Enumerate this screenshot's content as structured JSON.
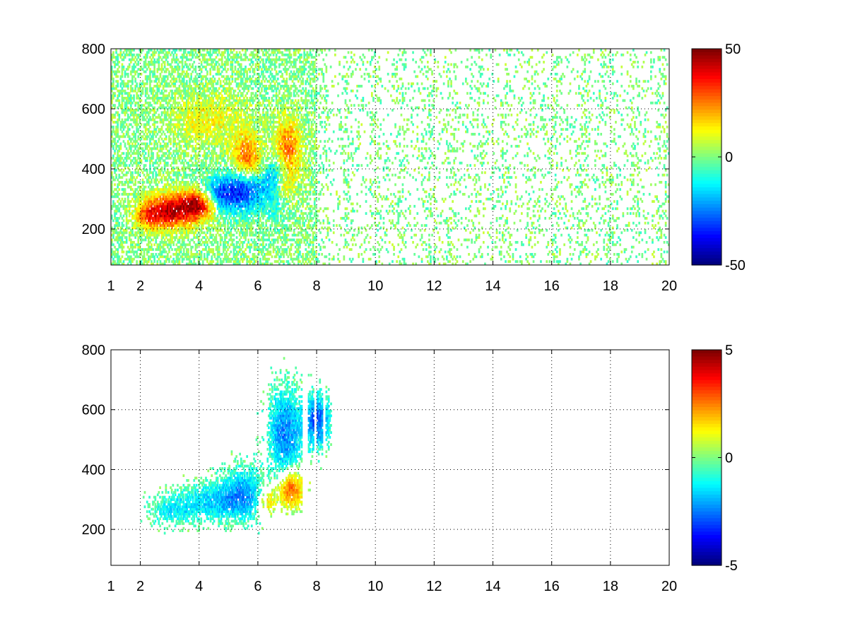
{
  "chart_data": [
    {
      "type": "heatmap",
      "title": "",
      "xlabel": "",
      "ylabel": "",
      "xlim": [
        1,
        20
      ],
      "ylim": [
        80,
        800
      ],
      "x_scale": "linear",
      "grid": true,
      "grid_style": "dotted",
      "x_ticks": [
        1,
        2,
        4,
        6,
        8,
        10,
        12,
        14,
        16,
        18,
        20
      ],
      "y_ticks": [
        200,
        400,
        600,
        800
      ],
      "x_tick_labels": [
        "1",
        "2",
        "4",
        "6",
        "8",
        "10",
        "12",
        "14",
        "16",
        "18",
        "20"
      ],
      "y_tick_labels": [
        "200",
        "400",
        "600",
        "800"
      ],
      "colormap": "jet",
      "colorbar": {
        "clim": [
          -50,
          50
        ],
        "ticks": [
          50,
          0,
          -50
        ],
        "tick_labels": [
          "50",
          "0",
          "-50"
        ],
        "placement": "right"
      },
      "blobs": [
        {
          "x": 2.95,
          "y": 255,
          "sx": 0.55,
          "sy": 40,
          "amp": 42
        },
        {
          "x": 4.0,
          "y": 278,
          "sx": 0.45,
          "sy": 35,
          "amp": 46
        },
        {
          "x": 4.6,
          "y": 305,
          "sx": 0.4,
          "sy": 40,
          "amp": -35
        },
        {
          "x": 5.5,
          "y": 330,
          "sx": 0.4,
          "sy": 50,
          "amp": -38
        },
        {
          "x": 5.6,
          "y": 420,
          "sx": 0.35,
          "sy": 60,
          "amp": 30
        },
        {
          "x": 6.6,
          "y": 340,
          "sx": 0.35,
          "sy": 60,
          "amp": -30
        },
        {
          "x": 7.0,
          "y": 460,
          "sx": 0.3,
          "sy": 70,
          "amp": 28
        },
        {
          "x": 6.8,
          "y": 330,
          "sx": 0.3,
          "sy": 40,
          "amp": 25
        },
        {
          "x": 4.3,
          "y": 560,
          "sx": 0.9,
          "sy": 60,
          "amp": 12
        },
        {
          "x": 2.2,
          "y": 240,
          "sx": 0.3,
          "sy": 30,
          "amp": 18
        }
      ],
      "base_amplitude": 8,
      "data_columns": [
        1.0,
        1.1,
        1.3,
        1.5,
        1.7,
        2.0,
        2.3,
        2.6,
        3.0,
        3.4,
        3.8,
        4.2,
        4.6,
        5.0,
        5.4,
        5.8,
        6.2,
        6.6,
        7.0,
        7.4,
        7.8,
        8.2,
        8.6,
        9.0,
        9.4,
        9.8,
        10.2,
        10.4,
        10.8,
        11.2,
        11.6,
        12.0,
        12.4,
        12.8,
        13.2,
        13.6,
        13.9,
        14.4,
        14.8,
        15.2,
        15.6,
        16.0,
        16.4,
        16.8,
        17.2,
        17.6,
        18.0,
        18.4,
        18.8,
        19.2,
        19.6,
        20.0
      ]
    },
    {
      "type": "heatmap",
      "title": "",
      "xlabel": "",
      "ylabel": "",
      "xlim": [
        1,
        20
      ],
      "ylim": [
        80,
        800
      ],
      "x_scale": "linear",
      "grid": true,
      "grid_style": "dotted",
      "x_ticks": [
        1,
        2,
        4,
        6,
        8,
        10,
        12,
        14,
        16,
        18,
        20
      ],
      "y_ticks": [
        200,
        400,
        600,
        800
      ],
      "x_tick_labels": [
        "1",
        "2",
        "4",
        "6",
        "8",
        "10",
        "12",
        "14",
        "16",
        "18",
        "20"
      ],
      "y_tick_labels": [
        "200",
        "400",
        "600",
        "800"
      ],
      "colormap": "jet",
      "colorbar": {
        "clim": [
          -5,
          5
        ],
        "ticks": [
          5,
          0,
          -5
        ],
        "tick_labels": [
          "5",
          "0",
          "-5"
        ],
        "placement": "right"
      },
      "blobs": [
        {
          "x": 3.0,
          "y": 260,
          "sx": 0.6,
          "sy": 35,
          "amp": -1.2
        },
        {
          "x": 4.5,
          "y": 290,
          "sx": 0.8,
          "sy": 45,
          "amp": -1.6
        },
        {
          "x": 5.5,
          "y": 320,
          "sx": 0.5,
          "sy": 60,
          "amp": -1.8
        },
        {
          "x": 6.9,
          "y": 520,
          "sx": 0.4,
          "sy": 100,
          "amp": -2.5
        },
        {
          "x": 7.1,
          "y": 330,
          "sx": 0.3,
          "sy": 40,
          "amp": 3.2
        },
        {
          "x": 8.0,
          "y": 560,
          "sx": 0.3,
          "sy": 60,
          "amp": -3.0
        },
        {
          "x": 6.3,
          "y": 290,
          "sx": 0.2,
          "sy": 30,
          "amp": 2.0
        }
      ],
      "data_columns": [
        1.1,
        2.0,
        2.2,
        2.4,
        2.6,
        2.8,
        3.0,
        3.2,
        3.4,
        3.6,
        3.8,
        4.0,
        4.2,
        4.4,
        4.6,
        4.8,
        5.0,
        5.2,
        5.4,
        5.6,
        5.8,
        6.0,
        6.3,
        6.5,
        6.7,
        6.9,
        7.1,
        7.3,
        7.7,
        8.0,
        8.3,
        9.0,
        10.2,
        10.4
      ]
    }
  ]
}
